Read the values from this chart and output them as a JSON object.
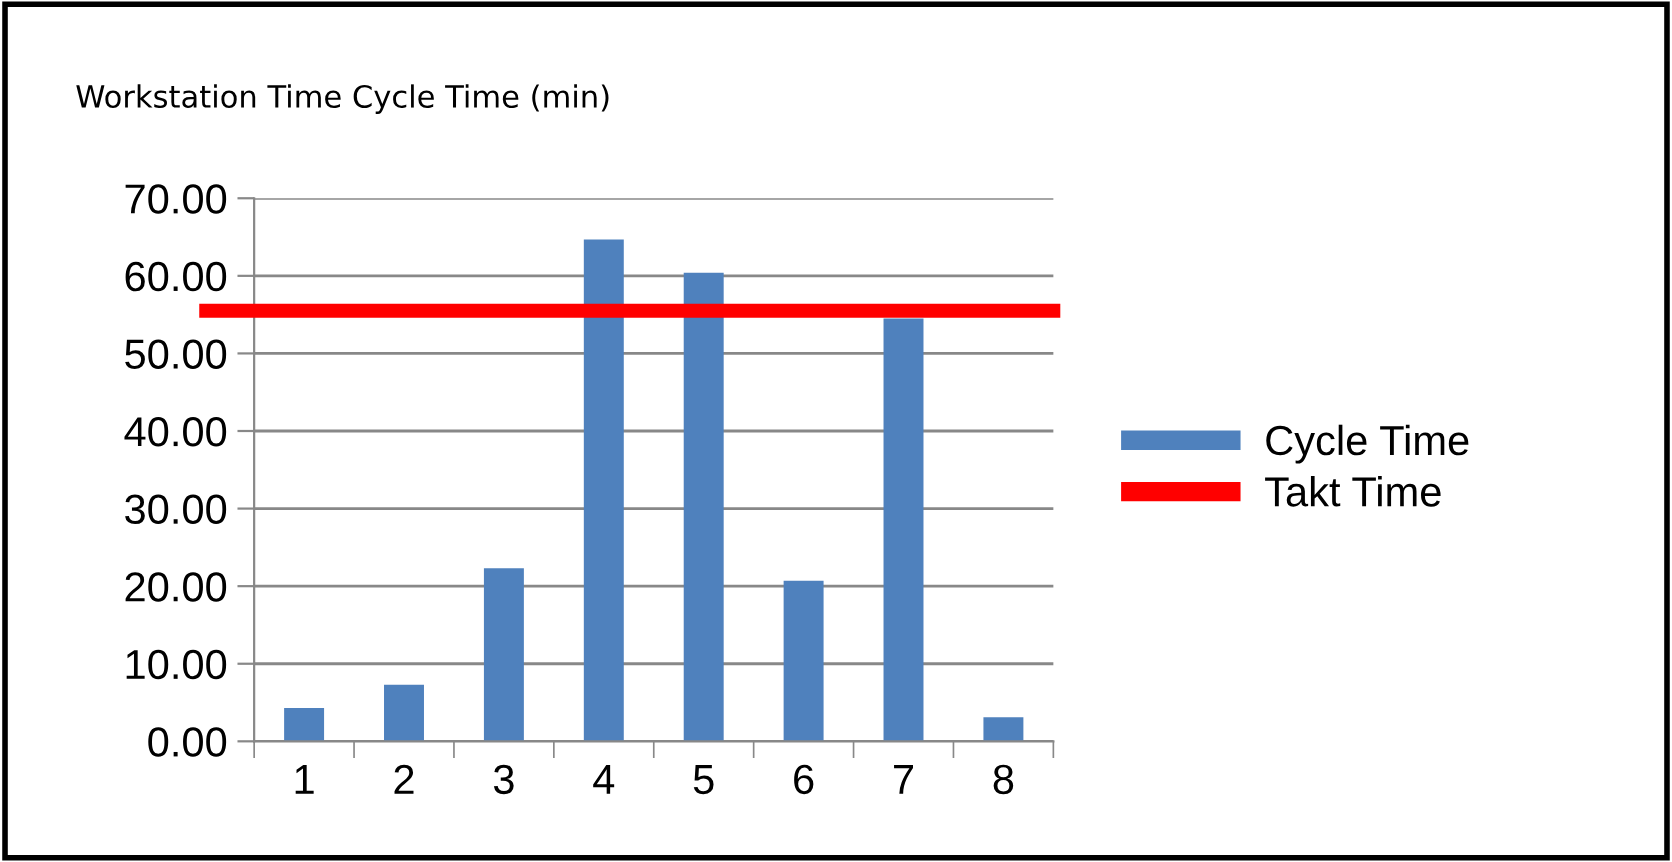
{
  "chart_data": {
    "type": "bar",
    "title": "Workstation Time Cycle Time (min)",
    "categories": [
      "1",
      "2",
      "3",
      "4",
      "5",
      "6",
      "7",
      "8"
    ],
    "series": [
      {
        "name": "Cycle Time",
        "color": "#4f81bd",
        "values": [
          4.3,
          7.3,
          22.3,
          64.7,
          60.4,
          20.7,
          54.5,
          3.1
        ]
      }
    ],
    "ylim": [
      0,
      70
    ],
    "yticks": [
      {
        "value": 0,
        "label": "0.00"
      },
      {
        "value": 10,
        "label": "10.00"
      },
      {
        "value": 20,
        "label": "20.00"
      },
      {
        "value": 30,
        "label": "30.00"
      },
      {
        "value": 40,
        "label": "40.00"
      },
      {
        "value": 50,
        "label": "50.00"
      },
      {
        "value": 60,
        "label": "60.00"
      },
      {
        "value": 70,
        "label": "70.00"
      }
    ],
    "ref_lines": [
      {
        "axis": "y",
        "value": 55.5,
        "label": "Takt Time",
        "color": "#ff0000"
      }
    ],
    "grid": "y",
    "legend": "right"
  }
}
